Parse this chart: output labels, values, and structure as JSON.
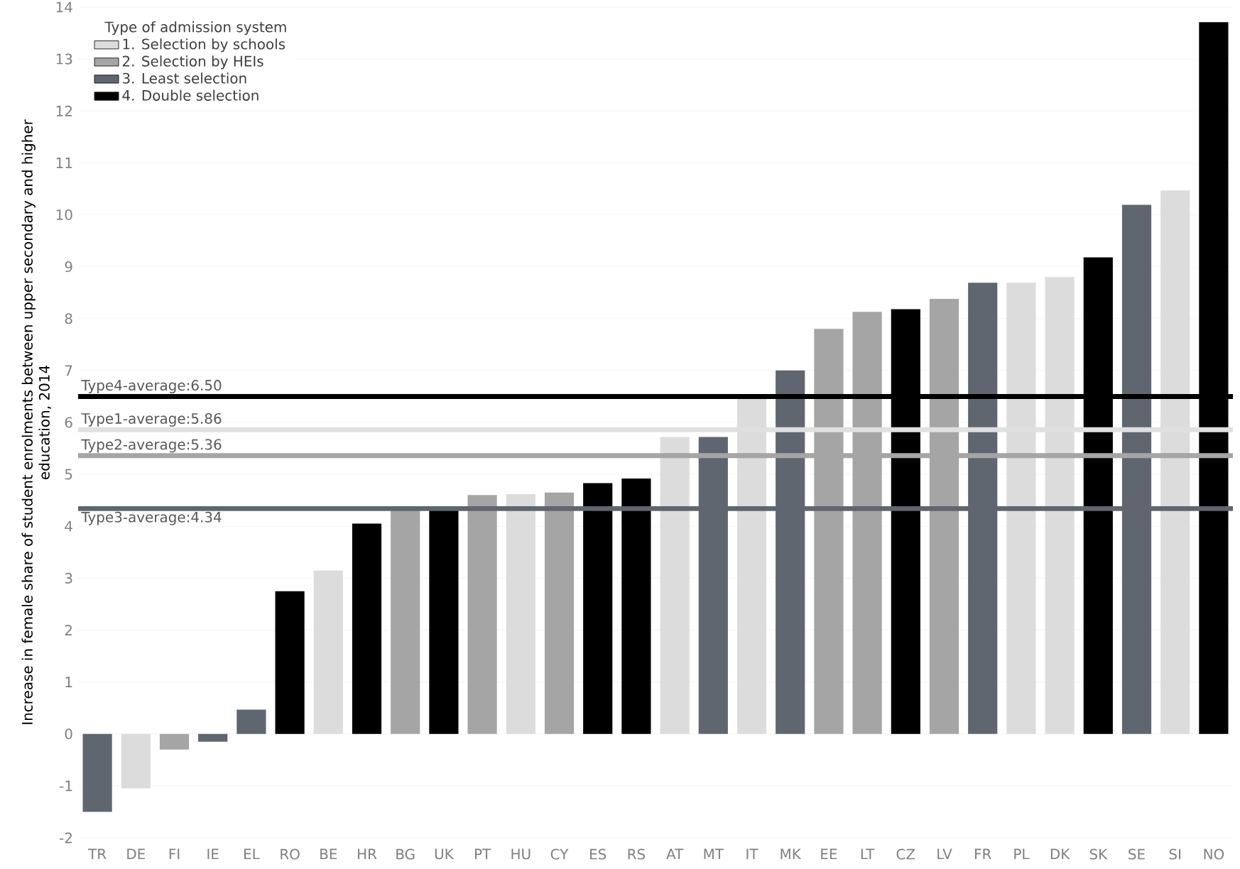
{
  "chart_data": {
    "type": "bar",
    "ylabel": "Increase in female share of student enrolments between upper secondary and higher education, 2014",
    "legend_title": "Type of admission system",
    "categories": [
      "TR",
      "DE",
      "FI",
      "IE",
      "EL",
      "RO",
      "BE",
      "HR",
      "BG",
      "UK",
      "PT",
      "HU",
      "CY",
      "ES",
      "RS",
      "AT",
      "MT",
      "IT",
      "MK",
      "EE",
      "LT",
      "CZ",
      "LV",
      "FR",
      "PL",
      "DK",
      "SK",
      "SE",
      "SI",
      "NO"
    ],
    "series": [
      {
        "name": "1. Selection by schools",
        "color": "#dcdcdc",
        "values": [
          null,
          -1.05,
          null,
          null,
          null,
          null,
          3.15,
          null,
          null,
          null,
          null,
          4.62,
          null,
          null,
          null,
          5.72,
          null,
          6.45,
          null,
          null,
          null,
          null,
          null,
          null,
          8.69,
          8.8,
          null,
          null,
          10.47,
          null
        ]
      },
      {
        "name": "2. Selection by HEIs",
        "color": "#a5a5a5",
        "values": [
          null,
          null,
          -0.3,
          null,
          null,
          null,
          null,
          null,
          4.35,
          null,
          4.6,
          null,
          4.65,
          null,
          null,
          null,
          null,
          null,
          null,
          7.8,
          8.13,
          null,
          8.38,
          null,
          null,
          null,
          null,
          null,
          null,
          null
        ]
      },
      {
        "name": "3. Least selection",
        "color": "#5f6670",
        "values": [
          -1.5,
          null,
          null,
          -0.15,
          0.47,
          null,
          null,
          null,
          null,
          null,
          null,
          null,
          null,
          null,
          null,
          null,
          5.72,
          null,
          7.0,
          null,
          null,
          null,
          null,
          8.69,
          null,
          null,
          null,
          10.19,
          null,
          null
        ]
      },
      {
        "name": "4. Double selection",
        "color": "#000000",
        "values": [
          null,
          null,
          null,
          null,
          null,
          2.75,
          null,
          4.05,
          null,
          4.35,
          null,
          null,
          null,
          4.83,
          4.92,
          null,
          null,
          null,
          null,
          null,
          null,
          8.18,
          null,
          null,
          null,
          null,
          9.18,
          null,
          null,
          13.71
        ]
      }
    ],
    "stacked": false,
    "ylim": [
      -2,
      14
    ],
    "yticks": [
      -2,
      -1,
      0,
      1,
      2,
      3,
      4,
      5,
      6,
      7,
      8,
      9,
      10,
      11,
      12,
      13,
      14
    ],
    "grid": "y",
    "legend": "top left",
    "ref_lines": [
      {
        "axis": "y",
        "value": 6.5,
        "label": "Type4-average:6.50",
        "color": "#000000"
      },
      {
        "axis": "y",
        "value": 5.86,
        "label": "Type1-average:5.86",
        "color": "#e0e0e0"
      },
      {
        "axis": "y",
        "value": 5.36,
        "label": "Type2-average:5.36",
        "color": "#a5a5a5"
      },
      {
        "axis": "y",
        "value": 4.34,
        "label": "Type3-average:4.34",
        "color": "#5f6670"
      }
    ]
  }
}
